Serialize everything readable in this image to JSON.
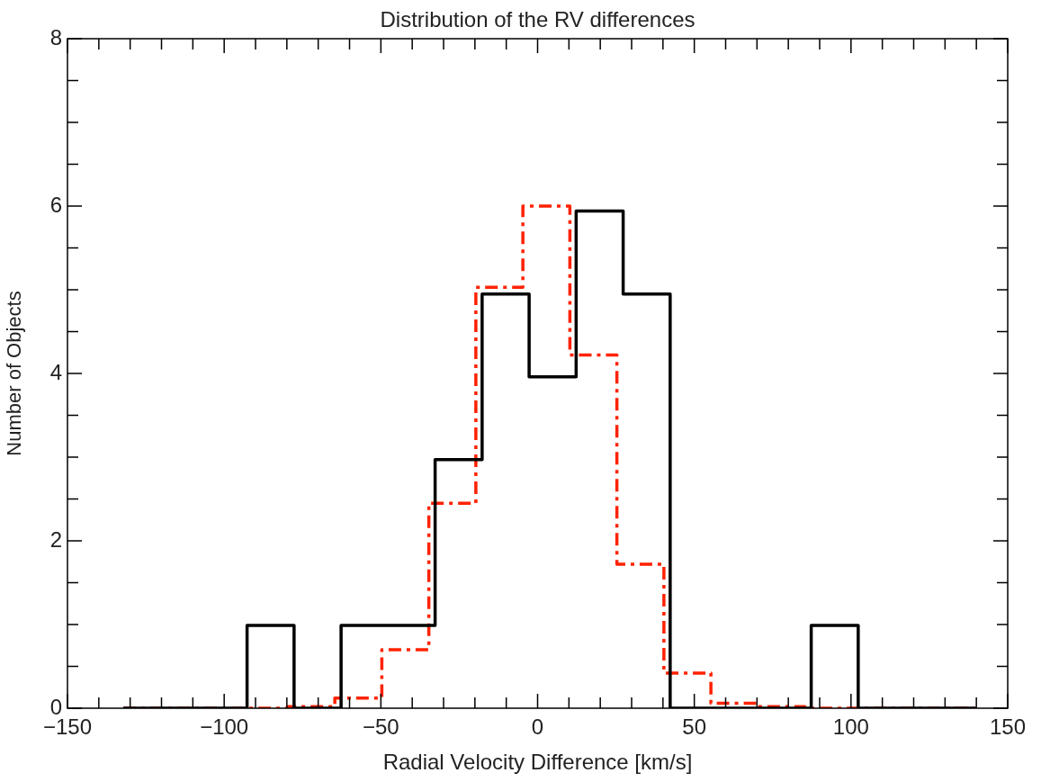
{
  "chart_data": {
    "type": "step",
    "title": "Distribution of the RV differences",
    "xlabel": "Radial Velocity Difference [km/s]",
    "ylabel": "Number of Objects",
    "xlim": [
      -150,
      150
    ],
    "ylim": [
      0,
      8
    ],
    "xticks": [
      -150,
      {
        "value": -140,
        "label": null
      },
      {
        "value": -130,
        "label": null
      },
      {
        "value": -120,
        "label": null
      },
      {
        "value": -110,
        "label": null
      },
      -100,
      {
        "value": -90,
        "label": null
      },
      {
        "value": -80,
        "label": null
      },
      {
        "value": -70,
        "label": null
      },
      {
        "value": -60,
        "label": null
      },
      -50,
      {
        "value": -40,
        "label": null
      },
      {
        "value": -30,
        "label": null
      },
      {
        "value": -20,
        "label": null
      },
      {
        "value": -10,
        "label": null
      },
      0,
      {
        "value": 10,
        "label": null
      },
      {
        "value": 20,
        "label": null
      },
      {
        "value": 30,
        "label": null
      },
      {
        "value": 40,
        "label": null
      },
      50,
      {
        "value": 60,
        "label": null
      },
      {
        "value": 70,
        "label": null
      },
      {
        "value": 80,
        "label": null
      },
      {
        "value": 90,
        "label": null
      },
      100,
      {
        "value": 110,
        "label": null
      },
      {
        "value": 120,
        "label": null
      },
      {
        "value": 130,
        "label": null
      },
      {
        "value": 140,
        "label": null
      },
      150
    ],
    "yticks": [
      0,
      {
        "value": 0.5,
        "label": null
      },
      {
        "value": 1,
        "label": null
      },
      {
        "value": 1.5,
        "label": null
      },
      2,
      {
        "value": 2.5,
        "label": null
      },
      {
        "value": 3,
        "label": null
      },
      {
        "value": 3.5,
        "label": null
      },
      4,
      {
        "value": 4.5,
        "label": null
      },
      {
        "value": 5,
        "label": null
      },
      {
        "value": 5.5,
        "label": null
      },
      6,
      {
        "value": 6.5,
        "label": null
      },
      {
        "value": 7,
        "label": null
      },
      {
        "value": 7.5,
        "label": null
      },
      8
    ],
    "series": [
      {
        "color": "#000000",
        "line_style": "solid",
        "x": [
          -132.2,
          -92.7,
          -77.7,
          -62.7,
          -47.7,
          -32.7,
          -17.7,
          -2.7,
          12.3,
          27.3,
          42.3,
          87.3,
          102.3,
          139.8
        ],
        "values": [
          0,
          0.99,
          0,
          0.99,
          0.99,
          2.97,
          4.95,
          3.96,
          5.94,
          4.95,
          0,
          0.99,
          0,
          0
        ]
      },
      {
        "color": "#ff2200",
        "line_style": "dashed",
        "x": [
          -132.2,
          -79.7,
          -64.7,
          -49.7,
          -34.7,
          -19.7,
          -4.7,
          10.3,
          25.3,
          40.3,
          55.3,
          70.3,
          85.3,
          139.8
        ],
        "values": [
          0,
          0.02,
          0.12,
          0.7,
          2.45,
          5.03,
          6.0,
          4.22,
          1.72,
          0.42,
          0.06,
          0.02,
          0,
          0
        ]
      }
    ]
  }
}
